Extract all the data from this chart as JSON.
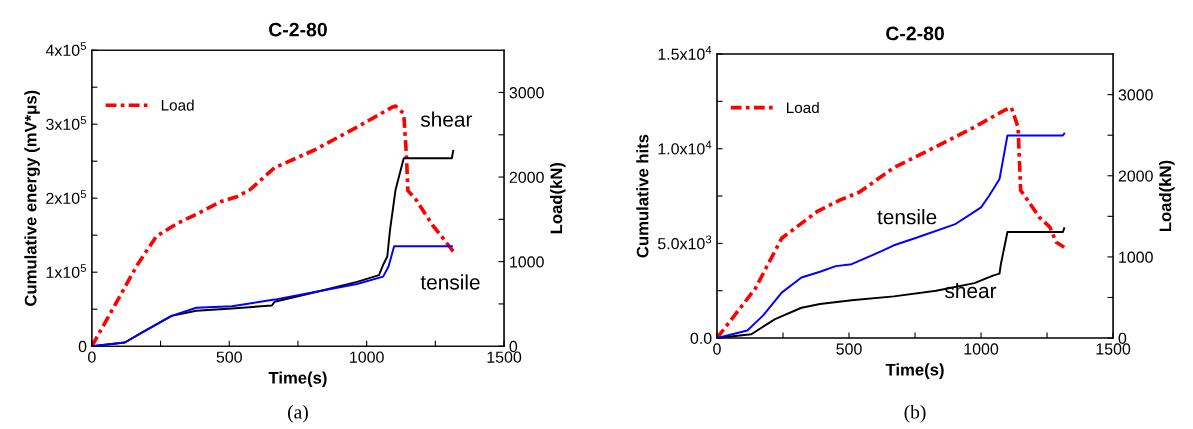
{
  "chart_data": [
    {
      "type": "line",
      "title": "C-2-80",
      "xlabel": "Time(s)",
      "ylabel": "Cumulative energy (mV*μs)",
      "y2label": "Load(kN)",
      "xlim": [
        0,
        1500
      ],
      "xticks": [
        0,
        {
          "value": 250,
          "label": null
        },
        500,
        {
          "value": 750,
          "label": null
        },
        1000,
        {
          "value": 1250,
          "label": null
        },
        1500
      ],
      "ylim": [
        0,
        400000
      ],
      "yticks": [
        {
          "value": 0,
          "label": "0"
        },
        {
          "value": 50000,
          "label": null
        },
        {
          "value": 100000,
          "label": "1x10$^{5}$"
        },
        {
          "value": 150000,
          "label": null
        },
        {
          "value": 200000,
          "label": "2x10$^{5}$"
        },
        {
          "value": 250000,
          "label": null
        },
        {
          "value": 300000,
          "label": "3x10$^{5}$"
        },
        {
          "value": 350000,
          "label": null
        },
        {
          "value": 400000,
          "label": "4x10$^{5}$"
        }
      ],
      "y2lim": [
        0,
        3500
      ],
      "y2ticks": [
        0,
        {
          "value": 500,
          "label": null
        },
        1000,
        {
          "value": 1500,
          "label": null
        },
        2000,
        {
          "value": 2500,
          "label": null
        },
        3000
      ],
      "legend": "top left",
      "grid": false,
      "series": [
        {
          "name": "shear",
          "color": "#000000",
          "line_style": "solid",
          "x": [
            0,
            120,
            185,
            290,
            380,
            510,
            655,
            665,
            835,
            965,
            1045,
            1060,
            1075,
            1085,
            1105,
            1135,
            1310,
            1315
          ],
          "values": [
            0,
            5000,
            19000,
            41000,
            48000,
            51000,
            55000,
            60000,
            75000,
            87000,
            96000,
            110000,
            121000,
            157000,
            211000,
            254000,
            254000,
            264000
          ]
        },
        {
          "name": "tensile",
          "color": "#0000ff",
          "line_style": "solid",
          "x": [
            0,
            120,
            185,
            290,
            380,
            510,
            665,
            835,
            965,
            1060,
            1080,
            1100,
            1310
          ],
          "values": [
            0,
            5000,
            19000,
            41000,
            52000,
            54000,
            63000,
            75000,
            84000,
            94000,
            108000,
            135000,
            135000
          ]
        },
        {
          "name": "Load",
          "axis": "y2",
          "color": "#ff0000",
          "line_style": "dashdot",
          "x": [
            0,
            95,
            165,
            235,
            310,
            380,
            470,
            530,
            575,
            665,
            810,
            965,
            1095,
            1105,
            1135,
            1145,
            1150,
            1180,
            1240,
            1275,
            1315
          ],
          "values": [
            0,
            550,
            960,
            1300,
            1450,
            1560,
            1710,
            1770,
            1850,
            2110,
            2320,
            2590,
            2830,
            2840,
            2750,
            2240,
            1840,
            1730,
            1430,
            1290,
            1120
          ]
        }
      ],
      "annotations": [
        "(a)"
      ]
    },
    {
      "type": "line",
      "title": "C-2-80",
      "xlabel": "Time(s)",
      "ylabel": "Cumulative hits",
      "y2label": "Load(kN)",
      "xlim": [
        0,
        1500
      ],
      "xticks": [
        0,
        {
          "value": 250,
          "label": null
        },
        500,
        {
          "value": 750,
          "label": null
        },
        1000,
        {
          "value": 1250,
          "label": null
        },
        1500
      ],
      "ylim": [
        0,
        15000
      ],
      "yticks": [
        {
          "value": 0,
          "label": "0.0"
        },
        {
          "value": 2500,
          "label": null
        },
        {
          "value": 5000,
          "label": "5.0x10$^{3}$"
        },
        {
          "value": 7500,
          "label": null
        },
        {
          "value": 10000,
          "label": "1.0x10$^{4}$"
        },
        {
          "value": 12500,
          "label": null
        },
        {
          "value": 15000,
          "label": "1.5x10$^{4}$"
        }
      ],
      "y2lim": [
        0,
        3500
      ],
      "y2ticks": [
        0,
        {
          "value": 500,
          "label": null
        },
        1000,
        {
          "value": 1500,
          "label": null
        },
        2000,
        {
          "value": 2500,
          "label": null
        },
        3000
      ],
      "legend": "top left",
      "grid": false,
      "series": [
        {
          "name": "shear",
          "color": "#000000",
          "line_style": "solid",
          "x": [
            0,
            130,
            220,
            320,
            390,
            510,
            670,
            830,
            975,
            1045,
            1070,
            1075,
            1100,
            1310,
            1315
          ],
          "values": [
            0,
            200,
            1000,
            1600,
            1800,
            2000,
            2200,
            2500,
            2900,
            3300,
            3400,
            3900,
            5600,
            5600,
            5800
          ]
        },
        {
          "name": "tensile",
          "color": "#0000ff",
          "line_style": "solid",
          "x": [
            0,
            115,
            175,
            245,
            320,
            390,
            450,
            510,
            625,
            670,
            755,
            900,
            945,
            1000,
            1030,
            1070,
            1100,
            1310,
            1315
          ],
          "values": [
            0,
            400,
            1200,
            2400,
            3200,
            3500,
            3800,
            3900,
            4600,
            4900,
            5300,
            6000,
            6400,
            6900,
            7500,
            8400,
            10700,
            10700,
            10800
          ]
        },
        {
          "name": "Load",
          "axis": "y2",
          "color": "#ff0000",
          "line_style": "dashdot",
          "x": [
            0,
            145,
            245,
            380,
            465,
            540,
            670,
            830,
            975,
            1090,
            1115,
            1140,
            1150,
            1170,
            1220,
            1260,
            1285,
            1315
          ],
          "values": [
            0,
            610,
            1230,
            1560,
            1700,
            1800,
            2100,
            2360,
            2600,
            2810,
            2840,
            2600,
            1820,
            1730,
            1490,
            1370,
            1180,
            1120
          ]
        }
      ],
      "annotations": [
        "(b)"
      ]
    }
  ]
}
